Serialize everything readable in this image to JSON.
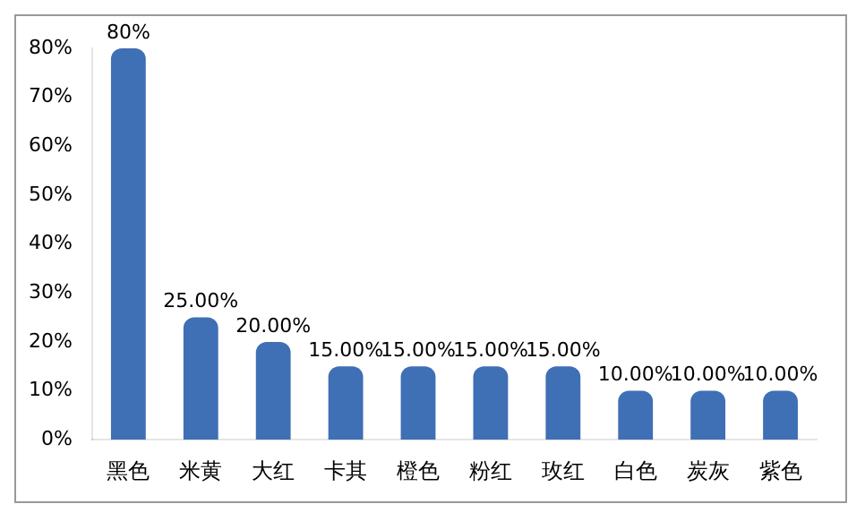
{
  "chart_data": {
    "type": "bar",
    "categories": [
      "黑色",
      "米黄",
      "大红",
      "卡其",
      "橙色",
      "粉红",
      "玫红",
      "白色",
      "炭灰",
      "紫色"
    ],
    "values": [
      80,
      25,
      20,
      15,
      15,
      15,
      15,
      10,
      10,
      10
    ],
    "value_labels": [
      "80%",
      "25.00%",
      "20.00%",
      "15.00%",
      "15.00%",
      "15.00%",
      "15.00%",
      "10.00%",
      "10.00%",
      "10.00%"
    ],
    "color": "#3f6fb5",
    "ylim": [
      0,
      80
    ],
    "yticks": [
      {
        "value": 0,
        "label": "0%"
      },
      {
        "value": 10,
        "label": "10%"
      },
      {
        "value": 20,
        "label": "20%"
      },
      {
        "value": 30,
        "label": "30%"
      },
      {
        "value": 40,
        "label": "40%"
      },
      {
        "value": 50,
        "label": "50%"
      },
      {
        "value": 60,
        "label": "60%"
      },
      {
        "value": 70,
        "label": "70%"
      },
      {
        "value": 80,
        "label": "80%"
      }
    ],
    "grid": false,
    "legend": false
  }
}
